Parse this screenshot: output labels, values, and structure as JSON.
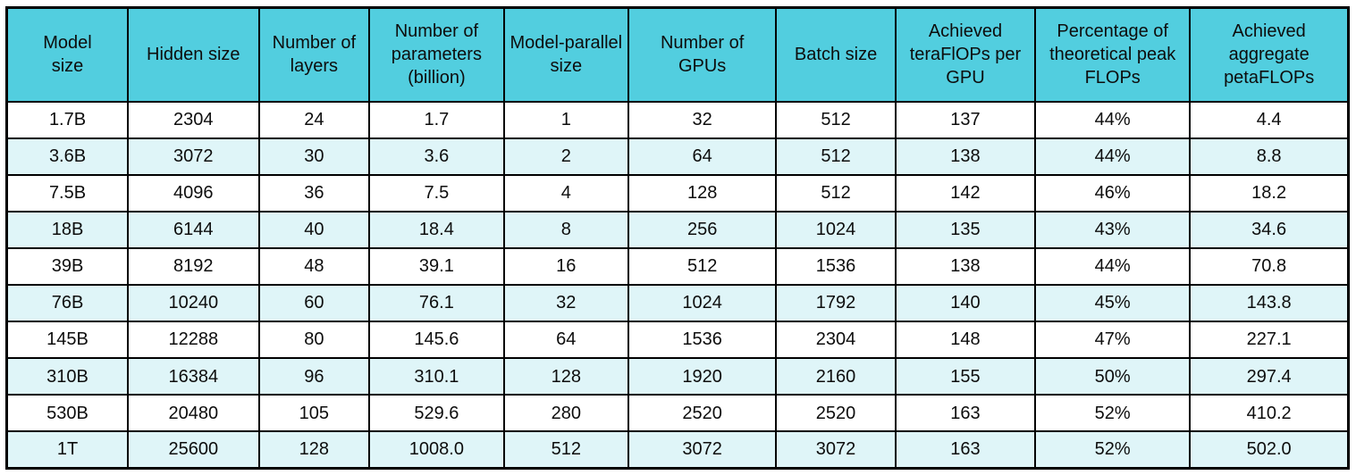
{
  "chart_data": {
    "type": "table",
    "columns": [
      "Model size",
      "Hidden size",
      "Number of layers",
      "Number of parameters (billion)",
      "Model-parallel size",
      "Number of GPUs",
      "Batch size",
      "Achieved teraFlOPs per GPU",
      "Percentage of theoretical peak FLOPs",
      "Achieved aggregate petaFLOPs"
    ],
    "rows": [
      [
        "1.7B",
        "2304",
        "24",
        "1.7",
        "1",
        "32",
        "512",
        "137",
        "44%",
        "4.4"
      ],
      [
        "3.6B",
        "3072",
        "30",
        "3.6",
        "2",
        "64",
        "512",
        "138",
        "44%",
        "8.8"
      ],
      [
        "7.5B",
        "4096",
        "36",
        "7.5",
        "4",
        "128",
        "512",
        "142",
        "46%",
        "18.2"
      ],
      [
        "18B",
        "6144",
        "40",
        "18.4",
        "8",
        "256",
        "1024",
        "135",
        "43%",
        "34.6"
      ],
      [
        "39B",
        "8192",
        "48",
        "39.1",
        "16",
        "512",
        "1536",
        "138",
        "44%",
        "70.8"
      ],
      [
        "76B",
        "10240",
        "60",
        "76.1",
        "32",
        "1024",
        "1792",
        "140",
        "45%",
        "143.8"
      ],
      [
        "145B",
        "12288",
        "80",
        "145.6",
        "64",
        "1536",
        "2304",
        "148",
        "47%",
        "227.1"
      ],
      [
        "310B",
        "16384",
        "96",
        "310.1",
        "128",
        "1920",
        "2160",
        "155",
        "50%",
        "297.4"
      ],
      [
        "530B",
        "20480",
        "105",
        "529.6",
        "280",
        "2520",
        "2520",
        "163",
        "52%",
        "410.2"
      ],
      [
        "1T",
        "25600",
        "128",
        "1008.0",
        "512",
        "3072",
        "3072",
        "163",
        "52%",
        "502.0"
      ]
    ],
    "layout": {
      "header_bg": "#52CEDF",
      "stripe_bg": "#DFF5F8",
      "row_bg": "#FFFFFF",
      "border_color": "#000000",
      "text_color": "#0D0D0D",
      "striped_row_indices": [
        1,
        3,
        5,
        7,
        9
      ],
      "col_widths_pct": [
        9.03,
        9.76,
        8.24,
        10.02,
        9.29,
        11.01,
        8.9,
        10.41,
        11.54,
        11.8
      ]
    }
  }
}
